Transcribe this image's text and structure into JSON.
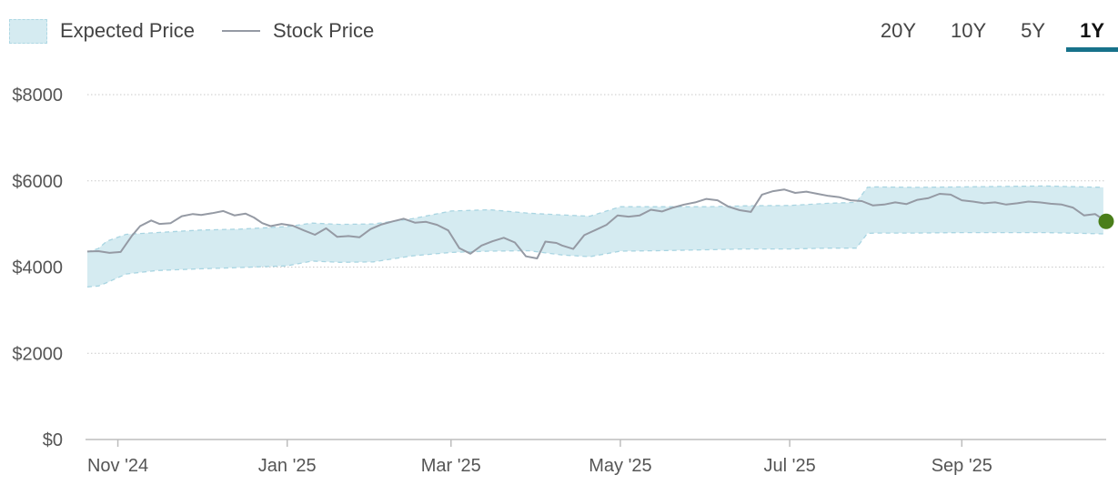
{
  "legend": {
    "band_label": "Expected Price",
    "line_label": "Stock Price"
  },
  "tabs": [
    {
      "label": "20Y",
      "active": false
    },
    {
      "label": "10Y",
      "active": false
    },
    {
      "label": "5Y",
      "active": false
    },
    {
      "label": "1Y",
      "active": true
    }
  ],
  "colors": {
    "band_fill": "#d5ebf1",
    "band_edge": "#a9d5e2",
    "price_line": "#959aa4",
    "current_marker": "#4a7e1a",
    "active_tab": "#17728a"
  },
  "chart_data": {
    "type": "area",
    "title": "",
    "xlabel": "",
    "ylabel": "",
    "ylim": [
      0,
      8000
    ],
    "xlim": [
      "2024-10-21",
      "2025-10-23"
    ],
    "y_ticks": [
      {
        "value": 0,
        "label": "$0"
      },
      {
        "value": 2000,
        "label": "$2000"
      },
      {
        "value": 4000,
        "label": "$4000"
      },
      {
        "value": 6000,
        "label": "$6000"
      },
      {
        "value": 8000,
        "label": "$8000"
      }
    ],
    "x_ticks": [
      {
        "value": "2024-11-01",
        "label": "Nov '24"
      },
      {
        "value": "2025-01-01",
        "label": "Jan '25"
      },
      {
        "value": "2025-03-01",
        "label": "Mar '25"
      },
      {
        "value": "2025-05-01",
        "label": "May '25"
      },
      {
        "value": "2025-07-01",
        "label": "Jul '25"
      },
      {
        "value": "2025-09-01",
        "label": "Sep '25"
      }
    ],
    "grid": true,
    "legend_position": "top-left",
    "series": [
      {
        "name": "Expected Price",
        "kind": "band",
        "x": [
          "2024-10-21",
          "2024-10-25",
          "2024-10-28",
          "2024-11-04",
          "2024-11-15",
          "2024-12-01",
          "2024-12-15",
          "2025-01-01",
          "2025-01-10",
          "2025-01-20",
          "2025-02-01",
          "2025-02-15",
          "2025-03-01",
          "2025-03-15",
          "2025-03-29",
          "2025-04-10",
          "2025-04-20",
          "2025-05-01",
          "2025-05-15",
          "2025-06-01",
          "2025-06-15",
          "2025-07-01",
          "2025-07-15",
          "2025-07-25",
          "2025-07-29",
          "2025-08-01",
          "2025-08-15",
          "2025-09-01",
          "2025-09-15",
          "2025-10-01",
          "2025-10-15",
          "2025-10-22"
        ],
        "lower": [
          3540,
          3560,
          3640,
          3840,
          3920,
          3960,
          3990,
          4030,
          4140,
          4110,
          4120,
          4260,
          4340,
          4370,
          4380,
          4280,
          4240,
          4370,
          4380,
          4400,
          4420,
          4420,
          4440,
          4440,
          4780,
          4790,
          4790,
          4800,
          4800,
          4800,
          4780,
          4770
        ],
        "upper": [
          4350,
          4430,
          4600,
          4760,
          4800,
          4860,
          4880,
          4940,
          5020,
          4990,
          5000,
          5120,
          5300,
          5330,
          5250,
          5210,
          5180,
          5400,
          5400,
          5400,
          5420,
          5430,
          5480,
          5500,
          5850,
          5860,
          5850,
          5860,
          5870,
          5880,
          5860,
          5850
        ]
      },
      {
        "name": "Stock Price",
        "kind": "line",
        "x": [
          "2024-10-21",
          "2024-10-25",
          "2024-10-29",
          "2024-11-02",
          "2024-11-06",
          "2024-11-09",
          "2024-11-13",
          "2024-11-16",
          "2024-11-20",
          "2024-11-24",
          "2024-11-28",
          "2024-12-01",
          "2024-12-05",
          "2024-12-09",
          "2024-12-13",
          "2024-12-17",
          "2024-12-20",
          "2024-12-23",
          "2024-12-26",
          "2024-12-30",
          "2025-01-03",
          "2025-01-07",
          "2025-01-11",
          "2025-01-15",
          "2025-01-19",
          "2025-01-23",
          "2025-01-27",
          "2025-01-31",
          "2025-02-04",
          "2025-02-08",
          "2025-02-12",
          "2025-02-16",
          "2025-02-20",
          "2025-02-24",
          "2025-02-28",
          "2025-03-04",
          "2025-03-08",
          "2025-03-12",
          "2025-03-16",
          "2025-03-20",
          "2025-03-24",
          "2025-03-28",
          "2025-04-01",
          "2025-04-04",
          "2025-04-08",
          "2025-04-10",
          "2025-04-14",
          "2025-04-18",
          "2025-04-22",
          "2025-04-26",
          "2025-04-30",
          "2025-05-04",
          "2025-05-08",
          "2025-05-12",
          "2025-05-16",
          "2025-05-20",
          "2025-05-24",
          "2025-05-28",
          "2025-06-01",
          "2025-06-05",
          "2025-06-09",
          "2025-06-13",
          "2025-06-17",
          "2025-06-21",
          "2025-06-25",
          "2025-06-29",
          "2025-07-03",
          "2025-07-07",
          "2025-07-11",
          "2025-07-15",
          "2025-07-19",
          "2025-07-23",
          "2025-07-27",
          "2025-07-31",
          "2025-08-04",
          "2025-08-08",
          "2025-08-12",
          "2025-08-16",
          "2025-08-20",
          "2025-08-24",
          "2025-08-28",
          "2025-09-01",
          "2025-09-05",
          "2025-09-09",
          "2025-09-13",
          "2025-09-17",
          "2025-09-21",
          "2025-09-25",
          "2025-09-29",
          "2025-10-03",
          "2025-10-07",
          "2025-10-11",
          "2025-10-15",
          "2025-10-19",
          "2025-10-23"
        ],
        "y": [
          4360,
          4370,
          4330,
          4350,
          4720,
          4950,
          5080,
          5000,
          5020,
          5180,
          5230,
          5210,
          5250,
          5300,
          5200,
          5240,
          5150,
          5020,
          4950,
          5000,
          4960,
          4850,
          4750,
          4900,
          4700,
          4720,
          4690,
          4880,
          4990,
          5060,
          5120,
          5030,
          5050,
          4980,
          4850,
          4440,
          4310,
          4500,
          4600,
          4680,
          4570,
          4250,
          4200,
          4590,
          4560,
          4500,
          4420,
          4740,
          4860,
          4980,
          5200,
          5170,
          5200,
          5330,
          5290,
          5380,
          5450,
          5500,
          5580,
          5550,
          5400,
          5320,
          5280,
          5680,
          5760,
          5800,
          5720,
          5750,
          5700,
          5650,
          5620,
          5550,
          5530,
          5430,
          5450,
          5500,
          5460,
          5560,
          5600,
          5700,
          5680,
          5550,
          5520,
          5480,
          5500,
          5450,
          5480,
          5520,
          5500,
          5470,
          5450,
          5380,
          5200,
          5230,
          5060
        ]
      }
    ],
    "current_value": {
      "x": "2025-10-23",
      "y": 5060
    }
  }
}
